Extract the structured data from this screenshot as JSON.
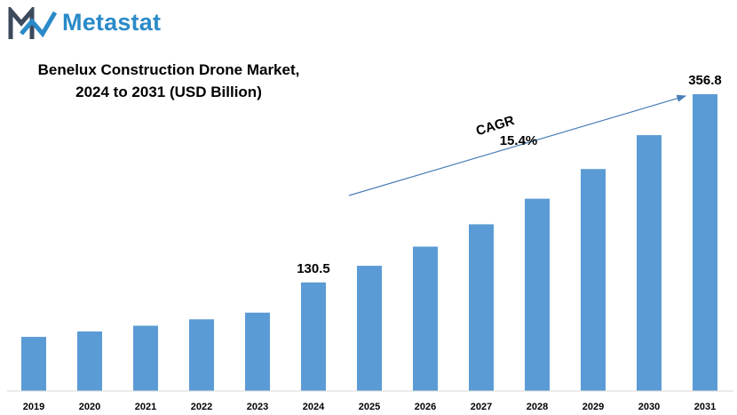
{
  "brand": {
    "name": "Metastat",
    "logo_color": "#2a8ac8",
    "logo_dark": "#3d4a5c"
  },
  "chart_data": {
    "type": "bar",
    "title_line1": "Benelux Construction Drone Market,",
    "title_line2": "2024 to 2031 (USD Billion)",
    "categories": [
      "2019",
      "2020",
      "2021",
      "2022",
      "2023",
      "2024",
      "2025",
      "2026",
      "2027",
      "2028",
      "2029",
      "2030",
      "2031"
    ],
    "values": [
      65.1,
      71.6,
      78.5,
      86.2,
      94.2,
      130.5,
      150.5,
      173.6,
      200.4,
      231.2,
      266.8,
      307.6,
      356.8
    ],
    "data_labels": {
      "2024": "130.5",
      "2031": "356.8"
    },
    "annotation": {
      "label": "CAGR",
      "value": "15.4%"
    },
    "ylim": [
      0,
      360
    ],
    "bar_color": "#5b9bd5",
    "grid": false,
    "xlabel": "",
    "ylabel": ""
  }
}
